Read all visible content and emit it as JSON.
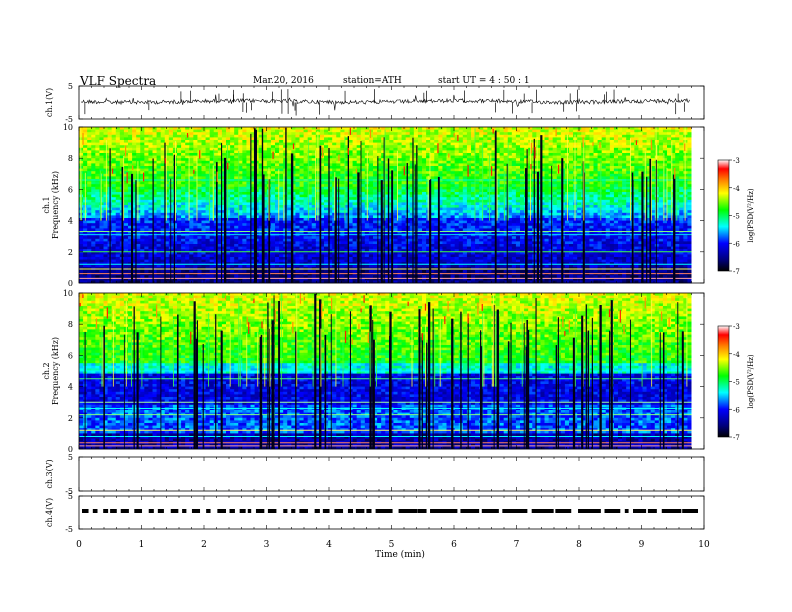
{
  "header": {
    "title": "VLF  Spectra",
    "date": "Mar.20, 2016",
    "station": "station=ATH",
    "start": "start  UT  =   4  : 50 : 1"
  },
  "chart_data": [
    {
      "type": "line",
      "name": "ch1-waveform",
      "ylabel": "ch.1(V)",
      "ylim": [
        -5,
        5
      ],
      "yticks": [
        "5",
        "-5"
      ],
      "xlim": [
        0,
        10
      ]
    },
    {
      "type": "heatmap",
      "name": "ch1-spectrogram",
      "ylabel_top": "ch.1",
      "ylabel": "Frequency  (kHz)",
      "ylim": [
        0,
        10
      ],
      "yticks": [
        "0",
        "2",
        "4",
        "6",
        "8",
        "10"
      ],
      "xlim": [
        0,
        10
      ],
      "colorbar": {
        "label": "log(PSD(V²/Hz)",
        "range": [
          -7,
          -3
        ],
        "ticks": [
          "-3",
          "-4",
          "-5",
          "-6",
          "-7"
        ]
      }
    },
    {
      "type": "heatmap",
      "name": "ch2-spectrogram",
      "ylabel_top": "ch.2",
      "ylabel": "Frequency  (kHz)",
      "ylim": [
        0,
        10
      ],
      "yticks": [
        "0",
        "2",
        "4",
        "6",
        "8",
        "10"
      ],
      "xlim": [
        0,
        10
      ],
      "colorbar": {
        "label": "log(PSD(V²/Hz)",
        "range": [
          -7,
          -3
        ],
        "ticks": [
          "-3",
          "-4",
          "-5",
          "-6",
          "-7"
        ]
      }
    },
    {
      "type": "line",
      "name": "ch3-waveform",
      "ylabel": "ch.3(V)",
      "ylim": [
        -5,
        5
      ],
      "yticks": [
        "5",
        "-5"
      ],
      "xlim": [
        0,
        10
      ]
    },
    {
      "type": "line",
      "name": "ch4-waveform",
      "ylabel": "ch.4(V)",
      "ylim": [
        -5,
        5
      ],
      "yticks": [
        "5",
        "-5"
      ],
      "xlim": [
        0,
        10
      ]
    }
  ],
  "xaxis": {
    "label": "Time  (min)",
    "ticks": [
      "0",
      "1",
      "2",
      "3",
      "4",
      "5",
      "6",
      "7",
      "8",
      "9",
      "10"
    ],
    "data_end_min": 9.8
  }
}
